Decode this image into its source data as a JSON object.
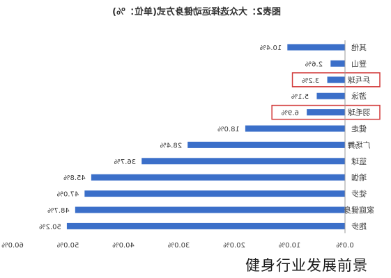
{
  "chart_data": {
    "type": "bar",
    "orientation": "horizontal",
    "mirrored": true,
    "title": "图表2：大众选择运动健身方式(单位：%)",
    "categories": [
      "其他",
      "登山",
      "乒乓球",
      "游泳",
      "羽毛球",
      "健走",
      "广场舞",
      "篮球",
      "瑜伽",
      "徒步",
      "家庭健身",
      "跑步"
    ],
    "values": [
      10.4,
      2.6,
      3.2,
      5.1,
      6.9,
      18.0,
      28.4,
      36.7,
      45.8,
      47.0,
      48.7,
      50.2
    ],
    "value_labels": [
      "10.4%",
      "2.6%",
      "3.2%",
      "5.1%",
      "6.9%",
      "18.0%",
      "28.4%",
      "36.7%",
      "45.8%",
      "47.0%",
      "48.7%",
      "50.2%"
    ],
    "highlighted": [
      "乒乓球",
      "羽毛球"
    ],
    "xlim": [
      0,
      60
    ],
    "xticks": [
      "0.0%",
      "10.0%",
      "20.0%",
      "30.0%",
      "40.0%",
      "50.0%",
      "60.0%"
    ],
    "grid": false,
    "xlabel": "",
    "ylabel": ""
  },
  "colors": {
    "bar": "#3b6fc9",
    "highlight_box": "#d23b3b",
    "text": "#3a3a3a",
    "axis": "#9a9a9a"
  },
  "caption": "健身行业发展前景"
}
